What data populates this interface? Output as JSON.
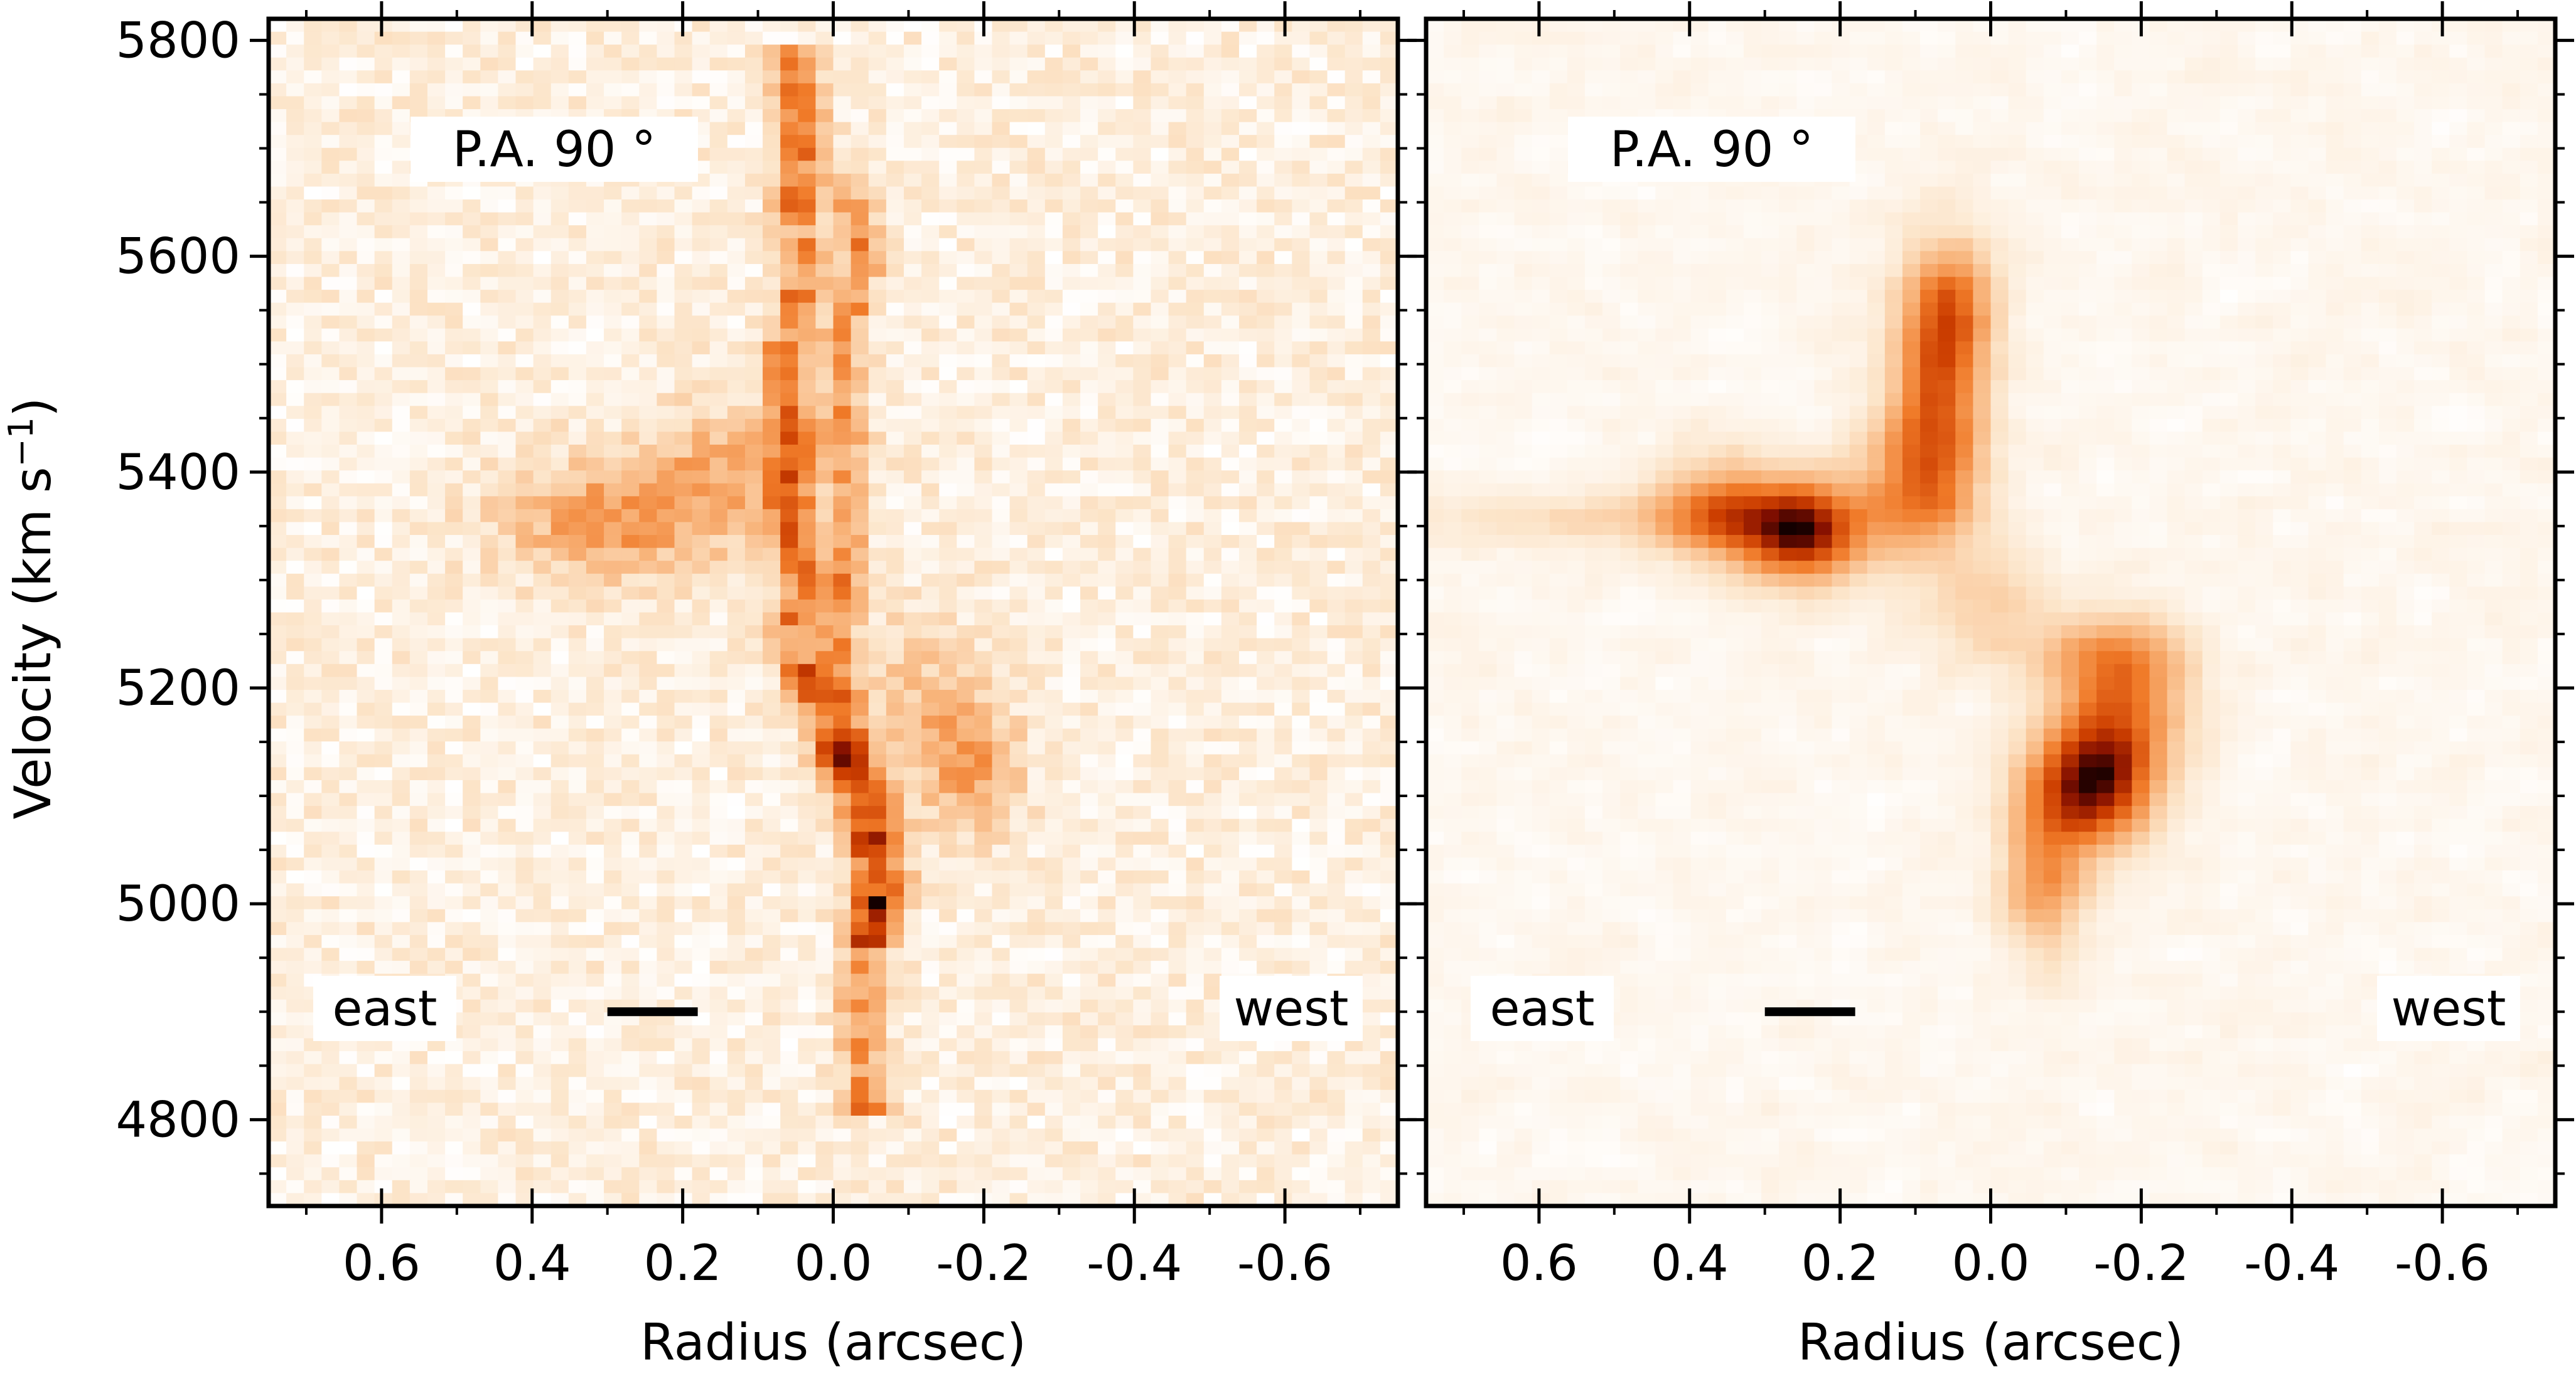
{
  "chart_data": {
    "type": "heatmap",
    "colormap": "white-orange-black",
    "xlabel": "Radius (arcsec)",
    "ylabel": "Velocity (km s",
    "ylabel_superscript": "−1",
    "ylabel_close": ")",
    "xlim": [
      0.75,
      -0.75
    ],
    "ylim": [
      4720,
      5820
    ],
    "x_ticks": [
      0.6,
      0.4,
      0.2,
      0.0,
      -0.2,
      -0.4,
      -0.6
    ],
    "x_tick_labels": [
      "0.6",
      "0.4",
      "0.2",
      "0.0",
      "-0.2",
      "-0.4",
      "-0.6"
    ],
    "y_ticks": [
      4800,
      5000,
      5200,
      5400,
      5600,
      5800
    ],
    "y_tick_labels": [
      "4800",
      "5000",
      "5200",
      "5400",
      "5600",
      "5800"
    ],
    "panels": [
      {
        "name": "observed",
        "label": "P.A. 90 °",
        "side_labels": [
          "east",
          "west"
        ],
        "scale_bar_x": [
          0.3,
          0.18
        ],
        "scale_bar_y": 4900,
        "features": [
          {
            "type": "ridge",
            "points": [
              [
                0.06,
                5800
              ],
              [
                0.04,
                5720
              ],
              [
                0.05,
                5660
              ],
              [
                0.04,
                5580
              ],
              [
                0.07,
                5500
              ],
              [
                0.05,
                5440
              ],
              [
                0.06,
                5360
              ],
              [
                0.04,
                5300
              ],
              [
                0.06,
                5240
              ],
              [
                0.02,
                5180
              ],
              [
                -0.01,
                5120
              ],
              [
                -0.04,
                5060
              ],
              [
                -0.05,
                5000
              ],
              [
                -0.04,
                4940
              ],
              [
                -0.04,
                4880
              ],
              [
                -0.04,
                4800
              ]
            ],
            "sigma_x": 0.022,
            "sigma_v": 28,
            "amplitude": 0.9
          },
          {
            "type": "ridge",
            "points": [
              [
                -0.02,
                5680
              ],
              [
                -0.04,
                5600
              ],
              [
                -0.01,
                5520
              ],
              [
                -0.02,
                5440
              ],
              [
                -0.02,
                5360
              ],
              [
                -0.01,
                5280
              ],
              [
                0.0,
                5220
              ],
              [
                -0.03,
                5140
              ],
              [
                -0.07,
                5080
              ],
              [
                -0.08,
                5020
              ],
              [
                -0.05,
                4960
              ]
            ],
            "sigma_x": 0.02,
            "sigma_v": 26,
            "amplitude": 0.7
          },
          {
            "type": "blob",
            "x": 0.3,
            "v": 5355,
            "sx": 0.1,
            "sv": 40,
            "amplitude": 0.55
          },
          {
            "type": "blob",
            "x": 0.14,
            "v": 5400,
            "sx": 0.08,
            "sv": 45,
            "amplitude": 0.4
          },
          {
            "type": "blob",
            "x": -0.18,
            "v": 5130,
            "sx": 0.05,
            "sv": 45,
            "amplitude": 0.5
          },
          {
            "type": "blob",
            "x": -0.1,
            "v": 5200,
            "sx": 0.06,
            "sv": 60,
            "amplitude": 0.25
          }
        ]
      },
      {
        "name": "model",
        "label": "P.A. 90 °",
        "side_labels": [
          "east",
          "west"
        ],
        "scale_bar_x": [
          0.3,
          0.18
        ],
        "scale_bar_y": 4900,
        "features": [
          {
            "type": "blob",
            "x": 0.25,
            "v": 5345,
            "sx": 0.055,
            "sv": 32,
            "amplitude": 1.0
          },
          {
            "type": "blob",
            "x": 0.36,
            "v": 5365,
            "sx": 0.06,
            "sv": 35,
            "amplitude": 0.55
          },
          {
            "type": "blob",
            "x": 0.1,
            "v": 5380,
            "sx": 0.06,
            "sv": 45,
            "amplitude": 0.5
          },
          {
            "type": "blob",
            "x": 0.07,
            "v": 5480,
            "sx": 0.045,
            "sv": 70,
            "amplitude": 0.7
          },
          {
            "type": "blob",
            "x": 0.05,
            "v": 5560,
            "sx": 0.04,
            "sv": 40,
            "amplitude": 0.45
          },
          {
            "type": "blob",
            "x": 0.5,
            "v": 5355,
            "sx": 0.18,
            "sv": 18,
            "amplitude": 0.22
          },
          {
            "type": "blob",
            "x": -0.13,
            "v": 5110,
            "sx": 0.055,
            "sv": 40,
            "amplitude": 1.0
          },
          {
            "type": "blob",
            "x": -0.18,
            "v": 5180,
            "sx": 0.06,
            "sv": 50,
            "amplitude": 0.55
          },
          {
            "type": "blob",
            "x": -0.07,
            "v": 5020,
            "sx": 0.04,
            "sv": 50,
            "amplitude": 0.5
          },
          {
            "type": "blob",
            "x": -0.15,
            "v": 5230,
            "sx": 0.07,
            "sv": 25,
            "amplitude": 0.3
          },
          {
            "type": "blob",
            "x": 0.0,
            "v": 5270,
            "sx": 0.06,
            "sv": 40,
            "amplitude": 0.25
          }
        ]
      }
    ]
  }
}
